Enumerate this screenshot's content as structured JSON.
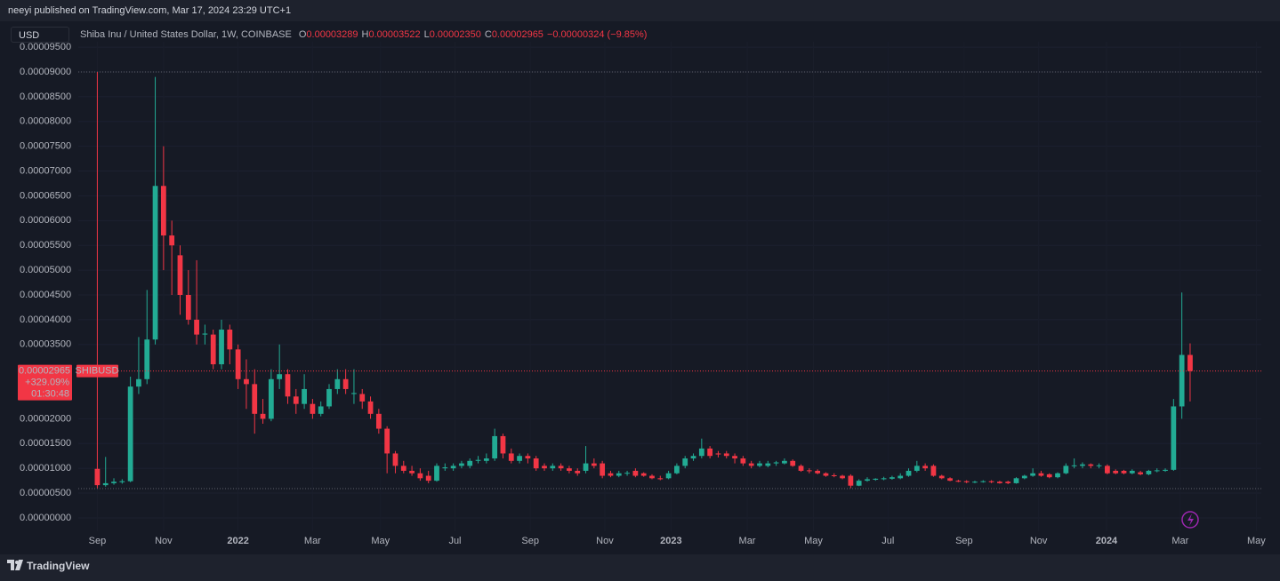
{
  "publisher": "neeyi published on TradingView.com, Mar 17, 2024 23:29 UTC+1",
  "footer": "TradingView",
  "chart_data": {
    "type": "candlestick",
    "currency": "USD",
    "symbol": "Shiba Inu / United States Dollar, 1W, COINBASE",
    "legend": {
      "o_label": "O",
      "o": "0.00003289",
      "h_label": "H",
      "h": "0.00003522",
      "l_label": "L",
      "l": "0.00002350",
      "c_label": "C",
      "c": "0.00002965",
      "change": "−0.00000324 (−9.85%)"
    },
    "price_label": {
      "price": "0.00002965",
      "symbol": "SHIBUSD",
      "change": "+329.09%",
      "countdown": "01:30:48"
    },
    "up_color": "#22ab94",
    "down_color": "#f23645",
    "xlim": [
      -2.3,
      140.6
    ],
    "xticks": [
      {
        "value": 0,
        "label": "Sep"
      },
      {
        "value": 8,
        "label": "Nov"
      },
      {
        "value": 17,
        "label": "2022"
      },
      {
        "value": 26,
        "label": "Mar"
      },
      {
        "value": 34.2,
        "label": "May"
      },
      {
        "value": 43.2,
        "label": "Jul"
      },
      {
        "value": 52.3,
        "label": "Sep"
      },
      {
        "value": 61.3,
        "label": "Nov"
      },
      {
        "value": 69.3,
        "label": "2023"
      },
      {
        "value": 78.5,
        "label": "Mar"
      },
      {
        "value": 86.5,
        "label": "May"
      },
      {
        "value": 95.5,
        "label": "Jul"
      },
      {
        "value": 104.7,
        "label": "Sep"
      },
      {
        "value": 113.7,
        "label": "Nov"
      },
      {
        "value": 121.9,
        "label": "2024"
      },
      {
        "value": 130.8,
        "label": "Mar"
      },
      {
        "value": 140,
        "label": "May"
      }
    ],
    "ylim": [
      -2.7e-06,
      9.61e-05
    ],
    "yticks": [
      {
        "value": 0,
        "label": "0.00000000"
      },
      {
        "value": 5e-06,
        "label": "0.00000500"
      },
      {
        "value": 1e-05,
        "label": "0.00001000"
      },
      {
        "value": 1.5e-05,
        "label": "0.00001500"
      },
      {
        "value": 2e-05,
        "label": "0.00002000"
      },
      {
        "value": 3.5e-05,
        "label": "0.00003500"
      },
      {
        "value": 4e-05,
        "label": "0.00004000"
      },
      {
        "value": 4.5e-05,
        "label": "0.00004500"
      },
      {
        "value": 5e-05,
        "label": "0.00005000"
      },
      {
        "value": 5.5e-05,
        "label": "0.00005500"
      },
      {
        "value": 6e-05,
        "label": "0.00006000"
      },
      {
        "value": 6.5e-05,
        "label": "0.00006500"
      },
      {
        "value": 7e-05,
        "label": "0.00007000"
      },
      {
        "value": 7.5e-05,
        "label": "0.00007500"
      },
      {
        "value": 8e-05,
        "label": "0.00008000"
      },
      {
        "value": 8.5e-05,
        "label": "0.00008500"
      },
      {
        "value": 9e-05,
        "label": "0.00009000"
      },
      {
        "value": 9.5e-05,
        "label": "0.00009500"
      }
    ],
    "hlines": [
      9e-05,
      5.9e-06
    ],
    "ohlc": [
      [
        9.9e-06,
        9e-05,
        6e-06,
        6.6e-06
      ],
      [
        6.6e-06,
        1.23e-05,
        6.3e-06,
        7e-06
      ],
      [
        7e-06,
        8e-06,
        6.7e-06,
        7.3e-06
      ],
      [
        7.2e-06,
        7.8e-06,
        6.9e-06,
        7.4e-06
      ],
      [
        7.4e-06,
        2.85e-05,
        7.2e-06,
        2.65e-05
      ],
      [
        2.65e-05,
        3.65e-05,
        2.5e-05,
        2.8e-05
      ],
      [
        2.8e-05,
        4.6e-05,
        2.7e-05,
        3.6e-05
      ],
      [
        3.6e-05,
        8.9e-05,
        3.5e-05,
        6.7e-05
      ],
      [
        6.7e-05,
        7.5e-05,
        5e-05,
        5.7e-05
      ],
      [
        5.7e-05,
        6e-05,
        4.5e-05,
        5.5e-05
      ],
      [
        5.3e-05,
        5.5e-05,
        4.1e-05,
        4.5e-05
      ],
      [
        4.5e-05,
        5e-05,
        3.9e-05,
        4e-05
      ],
      [
        4e-05,
        5.2e-05,
        3.5e-05,
        3.7e-05
      ],
      [
        3.7e-05,
        3.9e-05,
        3.5e-05,
        3.72e-05
      ],
      [
        3.7e-05,
        3.8e-05,
        3e-05,
        3.1e-05
      ],
      [
        3.1e-05,
        4e-05,
        3e-05,
        3.8e-05
      ],
      [
        3.8e-05,
        3.9e-05,
        3.1e-05,
        3.4e-05
      ],
      [
        3.4e-05,
        3.5e-05,
        2.6e-05,
        2.8e-05
      ],
      [
        2.8e-05,
        3.2e-05,
        2.2e-05,
        2.7e-05
      ],
      [
        2.7e-05,
        3e-05,
        1.7e-05,
        2.1e-05
      ],
      [
        2.1e-05,
        2.4e-05,
        1.9e-05,
        2e-05
      ],
      [
        2e-05,
        3e-05,
        1.95e-05,
        2.8e-05
      ],
      [
        2.8e-05,
        3.5e-05,
        2.6e-05,
        2.9e-05
      ],
      [
        2.9e-05,
        3e-05,
        2.3e-05,
        2.45e-05
      ],
      [
        2.45e-05,
        2.6e-05,
        2.1e-05,
        2.3e-05
      ],
      [
        2.3e-05,
        2.9e-05,
        2.2e-05,
        2.6e-05
      ],
      [
        2.3e-05,
        2.4e-05,
        2e-05,
        2.1e-05
      ],
      [
        2.1e-05,
        2.35e-05,
        2.05e-05,
        2.25e-05
      ],
      [
        2.25e-05,
        2.7e-05,
        2.2e-05,
        2.6e-05
      ],
      [
        2.6e-05,
        3e-05,
        2.5e-05,
        2.8e-05
      ],
      [
        2.8e-05,
        3e-05,
        2.5e-05,
        2.6e-05
      ],
      [
        2.5e-05,
        3e-05,
        2.3e-05,
        2.52e-05
      ],
      [
        2.5e-05,
        2.6e-05,
        2.2e-05,
        2.35e-05
      ],
      [
        2.35e-05,
        2.45e-05,
        2e-05,
        2.1e-05
      ],
      [
        2.1e-05,
        2.2e-05,
        1.7e-05,
        1.8e-05
      ],
      [
        1.8e-05,
        1.85e-05,
        9e-06,
        1.3e-05
      ],
      [
        1.3e-05,
        1.35e-05,
        9e-06,
        1.05e-05
      ],
      [
        1.05e-05,
        1.15e-05,
        9e-06,
        9.5e-06
      ],
      [
        9.5e-06,
        1.05e-05,
        8.5e-06,
        9e-06
      ],
      [
        9e-06,
        1e-05,
        7.5e-06,
        8e-06
      ],
      [
        8.5e-06,
        9.5e-06,
        7e-06,
        7.5e-06
      ],
      [
        7.5e-06,
        1.1e-05,
        7.3e-06,
        1.05e-05
      ],
      [
        1e-05,
        1.1e-05,
        9.5e-06,
        1.02e-05
      ],
      [
        1e-05,
        1.1e-05,
        9.5e-06,
        1.05e-05
      ],
      [
        1.05e-05,
        1.15e-05,
        1e-05,
        1.1e-05
      ],
      [
        1.05e-05,
        1.2e-05,
        1e-05,
        1.15e-05
      ],
      [
        1.15e-05,
        1.25e-05,
        1.1e-05,
        1.17e-05
      ],
      [
        1.15e-05,
        1.3e-05,
        1.1e-05,
        1.2e-05
      ],
      [
        1.2e-05,
        1.8e-05,
        1.15e-05,
        1.65e-05
      ],
      [
        1.65e-05,
        1.7e-05,
        1.2e-05,
        1.3e-05
      ],
      [
        1.3e-05,
        1.4e-05,
        1.1e-05,
        1.15e-05
      ],
      [
        1.15e-05,
        1.3e-05,
        1.1e-05,
        1.25e-05
      ],
      [
        1.25e-05,
        1.3e-05,
        1.1e-05,
        1.2e-05
      ],
      [
        1.2e-05,
        1.25e-05,
        9.5e-06,
        1e-05
      ],
      [
        1.05e-05,
        1.1e-05,
        9.5e-06,
        1e-05
      ],
      [
        1e-05,
        1.1e-05,
        9.5e-06,
        1.05e-05
      ],
      [
        1.05e-05,
        1.1e-05,
        9.5e-06,
        1e-05
      ],
      [
        1e-05,
        1.05e-05,
        9e-06,
        9.5e-06
      ],
      [
        9.5e-06,
        1e-05,
        8.5e-06,
        9e-06
      ],
      [
        9.5e-06,
        1.45e-05,
        9e-06,
        1.1e-05
      ],
      [
        1.1e-05,
        1.2e-05,
        1e-05,
        1.05e-05
      ],
      [
        1.1e-05,
        1.15e-05,
        8e-06,
        8.5e-06
      ],
      [
        9e-06,
        9.5e-06,
        8.2e-06,
        8.5e-06
      ],
      [
        8.5e-06,
        9.5e-06,
        8.2e-06,
        9e-06
      ],
      [
        9e-06,
        9.5e-06,
        8.5e-06,
        9.1e-06
      ],
      [
        9.5e-06,
        1e-05,
        8.2e-06,
        8.5e-06
      ],
      [
        9e-06,
        9.2e-06,
        8.3e-06,
        8.5e-06
      ],
      [
        8.5e-06,
        8.8e-06,
        7.8e-06,
        8e-06
      ],
      [
        8e-06,
        8.5e-06,
        7.6e-06,
        7.8e-06
      ],
      [
        8e-06,
        9.5e-06,
        7.8e-06,
        9e-06
      ],
      [
        9e-06,
        1.1e-05,
        8.8e-06,
        1.05e-05
      ],
      [
        1.05e-05,
        1.25e-05,
        1e-05,
        1.2e-05
      ],
      [
        1.2e-05,
        1.3e-05,
        1.15e-05,
        1.25e-05
      ],
      [
        1.25e-05,
        1.6e-05,
        1.2e-05,
        1.4e-05
      ],
      [
        1.4e-05,
        1.45e-05,
        1.2e-05,
        1.25e-05
      ],
      [
        1.3e-05,
        1.35e-05,
        1.22e-05,
        1.28e-05
      ],
      [
        1.3e-05,
        1.35e-05,
        1.2e-05,
        1.25e-05
      ],
      [
        1.25e-05,
        1.3e-05,
        1.1e-05,
        1.2e-05
      ],
      [
        1.2e-05,
        1.25e-05,
        1.05e-05,
        1.1e-05
      ],
      [
        1.1e-05,
        1.15e-05,
        1e-05,
        1.05e-05
      ],
      [
        1.05e-05,
        1.15e-05,
        1.02e-05,
        1.1e-05
      ],
      [
        1.05e-05,
        1.15e-05,
        1.02e-05,
        1.1e-05
      ],
      [
        1.1e-05,
        1.15e-05,
        1.05e-05,
        1.12e-05
      ],
      [
        1.1e-05,
        1.2e-05,
        1.08e-05,
        1.15e-05
      ],
      [
        1.15e-05,
        1.18e-05,
        1.03e-05,
        1.05e-05
      ],
      [
        1.05e-05,
        1.08e-05,
        9.3e-06,
        9.5e-06
      ],
      [
        9.6e-06,
        1e-05,
        9e-06,
        9.5e-06
      ],
      [
        9.5e-06,
        9.8e-06,
        8.8e-06,
        9e-06
      ],
      [
        9e-06,
        9.2e-06,
        8.3e-06,
        8.5e-06
      ],
      [
        8.6e-06,
        9e-06,
        8.2e-06,
        8.5e-06
      ],
      [
        8.5e-06,
        8.7e-06,
        7.8e-06,
        8e-06
      ],
      [
        8.5e-06,
        8.8e-06,
        6e-06,
        6.5e-06
      ],
      [
        6.5e-06,
        7.8e-06,
        6.4e-06,
        7.5e-06
      ],
      [
        7.5e-06,
        8.2e-06,
        7.3e-06,
        7.8e-06
      ],
      [
        7.7e-06,
        8e-06,
        7.5e-06,
        7.9e-06
      ],
      [
        7.8e-06,
        8.3e-06,
        7.6e-06,
        8e-06
      ],
      [
        7.9e-06,
        8.5e-06,
        7.7e-06,
        8.2e-06
      ],
      [
        8e-06,
        9e-06,
        7.8e-06,
        8.5e-06
      ],
      [
        8.5e-06,
        1e-05,
        8.3e-06,
        9.5e-06
      ],
      [
        9.5e-06,
        1.15e-05,
        9.2e-06,
        1.05e-05
      ],
      [
        1.05e-05,
        1.1e-05,
        9.5e-06,
        1e-05
      ],
      [
        1.05e-05,
        1.08e-05,
        8.3e-06,
        8.5e-06
      ],
      [
        8.5e-06,
        8.7e-06,
        7.8e-06,
        8e-06
      ],
      [
        8e-06,
        8.2e-06,
        7.4e-06,
        7.5e-06
      ],
      [
        7.5e-06,
        7.7e-06,
        7.2e-06,
        7.3e-06
      ],
      [
        7.4e-06,
        7.6e-06,
        7e-06,
        7.2e-06
      ],
      [
        7.2e-06,
        7.5e-06,
        7e-06,
        7.3e-06
      ],
      [
        7.3e-06,
        7.6e-06,
        7.1e-06,
        7.4e-06
      ],
      [
        7.4e-06,
        7.6e-06,
        7e-06,
        7.2e-06
      ],
      [
        7.3e-06,
        7.5e-06,
        6.9e-06,
        7e-06
      ],
      [
        7.3e-06,
        7.5e-06,
        6.8e-06,
        7e-06
      ],
      [
        7e-06,
        8.2e-06,
        6.9e-06,
        8e-06
      ],
      [
        8e-06,
        8.7e-06,
        7.8e-06,
        8.5e-06
      ],
      [
        8.5e-06,
        1e-05,
        8.3e-06,
        9e-06
      ],
      [
        9e-06,
        9.5e-06,
        8.3e-06,
        8.5e-06
      ],
      [
        8.8e-06,
        9e-06,
        8e-06,
        8.2e-06
      ],
      [
        8.2e-06,
        9.2e-06,
        8e-06,
        9e-06
      ],
      [
        9e-06,
        1.1e-05,
        8.8e-06,
        1.05e-05
      ],
      [
        1.05e-05,
        1.2e-05,
        1e-05,
        1.06e-05
      ],
      [
        1.05e-05,
        1.12e-05,
        1e-05,
        1.08e-05
      ],
      [
        1.08e-05,
        1.1e-05,
        1e-05,
        1.05e-05
      ],
      [
        1.05e-05,
        1.1e-05,
        1e-05,
        1.06e-05
      ],
      [
        1.05e-05,
        1.08e-05,
        8.8e-06,
        9e-06
      ],
      [
        9.5e-06,
        9.8e-06,
        8.8e-06,
        9e-06
      ],
      [
        9.5e-06,
        9.7e-06,
        8.8e-06,
        9e-06
      ],
      [
        9e-06,
        9.8e-06,
        8.8e-06,
        9.5e-06
      ],
      [
        9.2e-06,
        9.5e-06,
        8.6e-06,
        8.8e-06
      ],
      [
        8.8e-06,
        9.7e-06,
        8.6e-06,
        9.5e-06
      ],
      [
        9.5e-06,
        1e-05,
        9.2e-06,
        9.6e-06
      ],
      [
        9.5e-06,
        1e-05,
        9.3e-06,
        9.7e-06
      ],
      [
        9.7e-06,
        2.4e-05,
        9.5e-06,
        2.25e-05
      ],
      [
        2.25e-05,
        4.55e-05,
        2e-05,
        3.289e-05
      ],
      [
        3.289e-05,
        3.522e-05,
        2.35e-05,
        2.965e-05
      ]
    ]
  }
}
